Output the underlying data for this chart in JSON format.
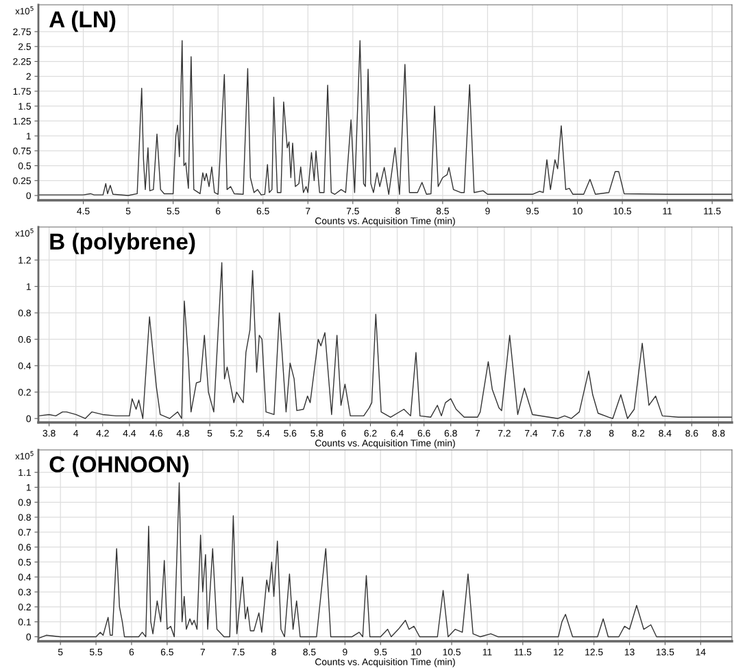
{
  "chart_data": [
    {
      "type": "line",
      "title": "A (LN)",
      "xlabel": "Counts vs. Acquisition Time (min)",
      "ylabel": "x10$^{5}$",
      "grid": true,
      "marker": "none",
      "line_style": "solid",
      "xlim": [
        4.0,
        11.72
      ],
      "ylim": [
        -0.08,
        3.2
      ],
      "xticks": [
        4.5,
        5,
        5.5,
        6,
        6.5,
        7,
        7.5,
        8,
        8.5,
        9,
        9.5,
        10,
        10.5,
        11,
        11.5
      ],
      "yticks": [
        0,
        0.25,
        0.5,
        0.75,
        1,
        1.25,
        1.5,
        1.75,
        2,
        2.25,
        2.5,
        2.75
      ],
      "series": [
        {
          "color": "#333333",
          "x": [
            4.0,
            4.5,
            4.58,
            4.62,
            4.72,
            4.75,
            4.77,
            4.8,
            4.83,
            5.0,
            5.1,
            5.15,
            5.17,
            5.19,
            5.22,
            5.24,
            5.28,
            5.32,
            5.36,
            5.4,
            5.5,
            5.53,
            5.55,
            5.57,
            5.6,
            5.62,
            5.64,
            5.67,
            5.7,
            5.73,
            5.8,
            5.83,
            5.85,
            5.87,
            5.9,
            5.93,
            5.96,
            6.0,
            6.07,
            6.1,
            6.14,
            6.18,
            6.28,
            6.33,
            6.36,
            6.4,
            6.44,
            6.48,
            6.52,
            6.55,
            6.57,
            6.6,
            6.62,
            6.66,
            6.7,
            6.73,
            6.77,
            6.79,
            6.81,
            6.83,
            6.86,
            6.9,
            6.92,
            6.95,
            6.98,
            7.0,
            7.04,
            7.07,
            7.09,
            7.13,
            7.18,
            7.22,
            7.26,
            7.3,
            7.37,
            7.42,
            7.48,
            7.52,
            7.58,
            7.62,
            7.64,
            7.67,
            7.7,
            7.73,
            7.77,
            7.8,
            7.85,
            7.9,
            7.97,
            8.02,
            8.08,
            8.13,
            8.22,
            8.27,
            8.32,
            8.37,
            8.41,
            8.45,
            8.5,
            8.55,
            8.57,
            8.62,
            8.7,
            8.74,
            8.8,
            8.85,
            8.95,
            9.0,
            9.5,
            9.58,
            9.62,
            9.66,
            9.7,
            9.75,
            9.78,
            9.82,
            9.87,
            9.91,
            9.95,
            10.07,
            10.14,
            10.2,
            10.35,
            10.42,
            10.46,
            10.52,
            11.0,
            11.72
          ],
          "values": [
            0.01,
            0.01,
            0.03,
            0.01,
            0.01,
            0.2,
            0.03,
            0.17,
            0.02,
            0.0,
            0.03,
            1.8,
            0.6,
            0.1,
            0.8,
            0.08,
            0.1,
            1.03,
            0.1,
            0.03,
            0.03,
            1.0,
            1.18,
            0.65,
            2.6,
            0.5,
            0.55,
            0.12,
            2.33,
            0.1,
            0.03,
            0.38,
            0.25,
            0.37,
            0.15,
            0.48,
            0.05,
            0.02,
            2.03,
            0.1,
            0.15,
            0.03,
            0.02,
            2.13,
            0.3,
            0.05,
            0.1,
            0.01,
            0.02,
            0.52,
            0.05,
            0.1,
            1.65,
            0.05,
            0.05,
            1.57,
            0.8,
            0.9,
            0.3,
            0.88,
            0.15,
            0.2,
            0.48,
            0.05,
            0.15,
            0.05,
            0.72,
            0.25,
            0.75,
            0.05,
            0.05,
            1.85,
            0.05,
            0.02,
            0.1,
            0.05,
            1.27,
            0.05,
            2.6,
            0.2,
            0.15,
            2.12,
            0.2,
            0.05,
            0.38,
            0.15,
            0.47,
            0.02,
            0.8,
            0.02,
            2.2,
            0.05,
            0.05,
            0.22,
            0.02,
            0.03,
            1.5,
            0.15,
            0.3,
            0.35,
            0.47,
            0.1,
            0.05,
            0.05,
            1.86,
            0.05,
            0.08,
            0.02,
            0.02,
            0.07,
            0.05,
            0.6,
            0.1,
            0.6,
            0.45,
            1.17,
            0.1,
            0.12,
            0.02,
            0.02,
            0.27,
            0.02,
            0.05,
            0.4,
            0.4,
            0.03,
            0.02,
            0.02
          ]
        }
      ]
    },
    {
      "type": "line",
      "title": "B (polybrene)",
      "xlabel": "Counts vs. Acquisition Time (min)",
      "ylabel": "x10$^{5}$",
      "grid": true,
      "marker": "none",
      "line_style": "solid",
      "xlim": [
        3.72,
        8.9
      ],
      "ylim": [
        -0.03,
        1.45
      ],
      "xticks": [
        3.8,
        4,
        4.2,
        4.4,
        4.6,
        4.8,
        5,
        5.2,
        5.4,
        5.6,
        5.8,
        6,
        6.2,
        6.4,
        6.6,
        6.8,
        7,
        7.2,
        7.4,
        7.6,
        7.8,
        8,
        8.2,
        8.4,
        8.6,
        8.8
      ],
      "yticks": [
        0,
        0.2,
        0.4,
        0.6,
        0.8,
        1,
        1.2
      ],
      "series": [
        {
          "color": "#333333",
          "x": [
            3.72,
            3.8,
            3.85,
            3.9,
            3.93,
            4.0,
            4.07,
            4.12,
            4.2,
            4.3,
            4.35,
            4.4,
            4.42,
            4.45,
            4.47,
            4.5,
            4.55,
            4.6,
            4.63,
            4.7,
            4.76,
            4.79,
            4.81,
            4.84,
            4.86,
            4.9,
            4.93,
            4.96,
            4.99,
            5.03,
            5.09,
            5.11,
            5.13,
            5.18,
            5.2,
            5.25,
            5.27,
            5.3,
            5.32,
            5.35,
            5.37,
            5.39,
            5.42,
            5.48,
            5.52,
            5.57,
            5.6,
            5.63,
            5.65,
            5.7,
            5.73,
            5.75,
            5.81,
            5.83,
            5.86,
            5.91,
            5.95,
            5.98,
            6.01,
            6.05,
            6.15,
            6.19,
            6.21,
            6.24,
            6.28,
            6.35,
            6.45,
            6.5,
            6.54,
            6.57,
            6.65,
            6.7,
            6.73,
            6.76,
            6.8,
            6.84,
            6.86,
            6.9,
            7.0,
            7.02,
            7.08,
            7.11,
            7.16,
            7.18,
            7.24,
            7.3,
            7.35,
            7.41,
            7.6,
            7.65,
            7.7,
            7.76,
            7.83,
            7.86,
            7.9,
            7.98,
            8.01,
            8.07,
            8.12,
            8.17,
            8.23,
            8.28,
            8.33,
            8.38,
            8.5,
            8.9
          ],
          "values": [
            0.02,
            0.03,
            0.02,
            0.05,
            0.05,
            0.03,
            0.0,
            0.05,
            0.03,
            0.02,
            0.02,
            0.02,
            0.15,
            0.07,
            0.14,
            0.0,
            0.77,
            0.25,
            0.03,
            0.0,
            0.05,
            0.0,
            0.89,
            0.45,
            0.05,
            0.27,
            0.28,
            0.63,
            0.2,
            0.05,
            1.18,
            0.3,
            0.39,
            0.12,
            0.2,
            0.12,
            0.5,
            0.67,
            1.12,
            0.35,
            0.63,
            0.6,
            0.05,
            0.03,
            0.8,
            0.05,
            0.42,
            0.3,
            0.06,
            0.07,
            0.17,
            0.12,
            0.6,
            0.55,
            0.65,
            0.03,
            0.63,
            0.1,
            0.26,
            0.02,
            0.02,
            0.08,
            0.12,
            0.79,
            0.05,
            0.01,
            0.07,
            0.02,
            0.5,
            0.02,
            0.01,
            0.1,
            0.02,
            0.12,
            0.15,
            0.07,
            0.05,
            0.01,
            0.01,
            0.05,
            0.43,
            0.22,
            0.08,
            0.06,
            0.63,
            0.03,
            0.23,
            0.03,
            0.0,
            0.02,
            0.0,
            0.05,
            0.36,
            0.18,
            0.04,
            0.01,
            0.0,
            0.18,
            0.0,
            0.07,
            0.57,
            0.1,
            0.17,
            0.02,
            0.01,
            0.01
          ]
        }
      ]
    },
    {
      "type": "line",
      "title": "C (OHNOON)",
      "xlabel": "Counts vs. Acquisition Time (min)",
      "ylabel": "x10$^{5}$",
      "grid": true,
      "marker": "none",
      "line_style": "solid",
      "xlim": [
        4.69,
        14.44
      ],
      "ylim": [
        -0.03,
        1.25
      ],
      "xticks": [
        5,
        5.5,
        6,
        6.5,
        7,
        7.5,
        8,
        8.5,
        9,
        9.5,
        10,
        10.5,
        11,
        11.5,
        12,
        12.5,
        13,
        13.5,
        14
      ],
      "yticks": [
        0,
        0.1,
        0.2,
        0.3,
        0.4,
        0.5,
        0.6,
        0.7,
        0.8,
        0.9,
        1,
        1.1
      ],
      "series": [
        {
          "color": "#333333",
          "x": [
            4.69,
            4.8,
            5.0,
            5.5,
            5.56,
            5.6,
            5.67,
            5.7,
            5.73,
            5.79,
            5.83,
            5.87,
            5.9,
            6.1,
            6.15,
            6.2,
            6.24,
            6.27,
            6.3,
            6.36,
            6.41,
            6.46,
            6.5,
            6.55,
            6.6,
            6.67,
            6.71,
            6.74,
            6.77,
            6.82,
            6.85,
            6.88,
            6.92,
            6.97,
            7.0,
            7.04,
            7.07,
            7.14,
            7.2,
            7.3,
            7.38,
            7.43,
            7.48,
            7.56,
            7.6,
            7.63,
            7.67,
            7.72,
            7.79,
            7.83,
            7.9,
            7.93,
            7.97,
            8.0,
            8.05,
            8.1,
            8.15,
            8.22,
            8.27,
            8.32,
            8.37,
            8.5,
            8.6,
            8.73,
            8.8,
            9.1,
            9.2,
            9.25,
            9.3,
            9.35,
            9.5,
            9.6,
            9.65,
            9.75,
            9.85,
            9.9,
            9.97,
            10.05,
            10.3,
            10.38,
            10.45,
            10.55,
            10.65,
            10.73,
            10.8,
            10.9,
            11.05,
            11.15,
            12.0,
            12.05,
            12.1,
            12.2,
            12.55,
            12.63,
            12.7,
            12.85,
            12.93,
            13.0,
            13.1,
            13.2,
            13.3,
            13.38,
            14.44
          ],
          "values": [
            -0.01,
            0.01,
            0.0,
            0.0,
            0.03,
            0.01,
            0.13,
            0.01,
            0.01,
            0.59,
            0.2,
            0.1,
            0.0,
            0.0,
            0.03,
            0.0,
            0.74,
            0.1,
            0.02,
            0.24,
            0.1,
            0.51,
            0.05,
            0.07,
            0.0,
            1.03,
            0.1,
            0.27,
            0.05,
            0.12,
            0.08,
            0.11,
            0.05,
            0.68,
            0.3,
            0.55,
            0.05,
            0.59,
            0.05,
            0.0,
            0.0,
            0.81,
            0.02,
            0.4,
            0.12,
            0.2,
            0.04,
            0.04,
            0.16,
            0.03,
            0.38,
            0.3,
            0.5,
            0.27,
            0.64,
            0.05,
            0.0,
            0.42,
            0.05,
            0.24,
            0.0,
            0.0,
            0.0,
            0.59,
            0.0,
            0.0,
            0.03,
            0.0,
            0.41,
            0.0,
            0.0,
            0.05,
            0.0,
            0.05,
            0.11,
            0.05,
            0.07,
            0.0,
            0.0,
            0.31,
            0.0,
            0.05,
            0.03,
            0.42,
            0.02,
            0.0,
            0.02,
            0.0,
            0.0,
            0.1,
            0.15,
            0.0,
            0.0,
            0.12,
            0.0,
            0.0,
            0.07,
            0.05,
            0.21,
            0.05,
            0.08,
            0.0,
            0.0
          ]
        }
      ]
    }
  ]
}
